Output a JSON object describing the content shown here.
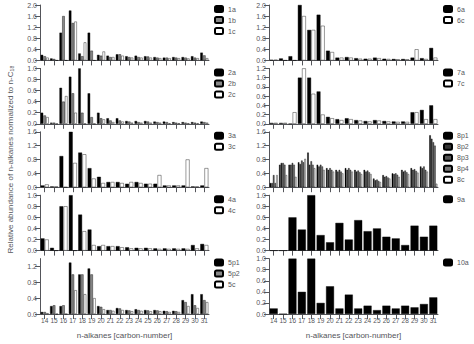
{
  "chart_data": [
    {
      "type": "bar",
      "categories": [
        "14",
        "15",
        "16",
        "17",
        "18",
        "19",
        "20",
        "21",
        "22",
        "23",
        "24",
        "25",
        "26",
        "27",
        "28",
        "29",
        "30",
        "31"
      ],
      "series": [
        {
          "name": "1a",
          "color": "#000000",
          "values": [
            0.2,
            0.07,
            1.0,
            1.8,
            0.25,
            1.0,
            0.2,
            0.17,
            0.22,
            0.15,
            0.17,
            0.15,
            0.12,
            0.1,
            0.12,
            0.12,
            0.15,
            0.28
          ]
        },
        {
          "name": "1b",
          "color": "#888888",
          "values": [
            0.15,
            0.05,
            1.6,
            1.35,
            0.15,
            0.35,
            0.17,
            0.12,
            0.22,
            0.12,
            0.12,
            0.14,
            0.1,
            0.1,
            0.1,
            0.1,
            0.1,
            0.18
          ]
        },
        {
          "name": "1c",
          "color": "#ffffff",
          "values": [
            0.1,
            0.0,
            0.0,
            1.4,
            0.65,
            0.0,
            0.32,
            0.12,
            0.17,
            0.1,
            0.1,
            0.1,
            0.08,
            0.08,
            0.08,
            0.07,
            0.08,
            0.08
          ]
        }
      ],
      "ylim": [
        0,
        2.0
      ],
      "yticks": [
        {
          "value": 0,
          "label": "0.0"
        },
        0.4,
        0.8,
        1.2,
        1.6,
        {
          "value": 2,
          "label": "2.0"
        }
      ],
      "legend": "right",
      "grid": false,
      "tick_labels": "y"
    },
    {
      "type": "bar",
      "categories": [
        "14",
        "15",
        "16",
        "17",
        "18",
        "19",
        "20",
        "21",
        "22",
        "23",
        "24",
        "25",
        "26",
        "27",
        "28",
        "29",
        "30",
        "31"
      ],
      "series": [
        {
          "name": "2a",
          "color": "#000000",
          "values": [
            0.2,
            0.02,
            0.65,
            0.85,
            1.0,
            0.55,
            0.2,
            0.1,
            0.1,
            0.05,
            0.05,
            0.05,
            0.04,
            0.04,
            0.03,
            0.03,
            0.03,
            0.04
          ]
        },
        {
          "name": "2b",
          "color": "#888888",
          "values": [
            0.15,
            0.02,
            0.4,
            0.55,
            0.2,
            0.12,
            0.1,
            0.06,
            0.06,
            0.04,
            0.03,
            0.04,
            0.03,
            0.03,
            0.02,
            0.02,
            0.02,
            0.03
          ]
        },
        {
          "name": "2c",
          "color": "#ffffff",
          "values": [
            0.12,
            0.0,
            0.5,
            0.2,
            0.0,
            0.0,
            0.08,
            0.03,
            0.04,
            0.02,
            0.02,
            0.02,
            0.02,
            0.01,
            0.01,
            0.01,
            0.01,
            0.02
          ]
        }
      ],
      "ylim": [
        0,
        1.0
      ],
      "yticks": [
        {
          "value": 0,
          "label": "0.0"
        },
        0.2,
        0.4,
        0.6,
        0.8,
        {
          "value": 1,
          "label": "1.0"
        }
      ],
      "legend": "right",
      "grid": false,
      "tick_labels": "y"
    },
    {
      "type": "bar",
      "ylabel": "Relative abundance of n-alkanes normalized to n-C₁₈",
      "categories": [
        "14",
        "15",
        "16",
        "17",
        "18",
        "19",
        "20",
        "21",
        "22",
        "23",
        "24",
        "25",
        "26",
        "27",
        "28",
        "29",
        "30",
        "31"
      ],
      "series": [
        {
          "name": "3a",
          "color": "#000000",
          "values": [
            0.05,
            0.02,
            0.9,
            1.6,
            1.0,
            0.55,
            0.3,
            0.15,
            0.15,
            0.1,
            0.15,
            0.1,
            0.1,
            0.05,
            0.05,
            0.05,
            0.02,
            0.05
          ]
        },
        {
          "name": "3c",
          "color": "#ffffff",
          "values": [
            0.08,
            0.02,
            0.0,
            0.7,
            0.95,
            0.25,
            0.12,
            0.15,
            0.12,
            0.15,
            0.12,
            0.1,
            0.35,
            0.05,
            0.05,
            0.8,
            0.02,
            0.55
          ]
        }
      ],
      "ylim": [
        0,
        1.6
      ],
      "yticks": [
        {
          "value": 0,
          "label": "0.0"
        },
        0.4,
        0.8,
        1.2,
        1.6
      ],
      "legend": "right",
      "grid": false,
      "tick_labels": "y"
    },
    {
      "type": "bar",
      "categories": [
        "14",
        "15",
        "16",
        "17",
        "18",
        "19",
        "20",
        "21",
        "22",
        "23",
        "24",
        "25",
        "26",
        "27",
        "28",
        "29",
        "30",
        "31"
      ],
      "series": [
        {
          "name": "4a",
          "color": "#000000",
          "values": [
            0.22,
            0.05,
            0.8,
            1.0,
            0.65,
            0.38,
            0.08,
            0.08,
            0.08,
            0.06,
            0.05,
            0.05,
            0.04,
            0.04,
            0.04,
            0.04,
            0.1,
            0.12
          ]
        },
        {
          "name": "4c",
          "color": "#ffffff",
          "values": [
            0.2,
            0.0,
            0.8,
            0.0,
            0.35,
            0.1,
            0.1,
            0.08,
            0.06,
            0.04,
            0.04,
            0.04,
            0.03,
            0.03,
            0.03,
            0.03,
            0.04,
            0.1
          ]
        }
      ],
      "ylim": [
        0,
        1.0
      ],
      "yticks": [
        {
          "value": 0,
          "label": "0.0"
        },
        0.2,
        0.4,
        0.6,
        0.8,
        {
          "value": 1,
          "label": "1.0"
        }
      ],
      "legend": "right",
      "grid": false,
      "tick_labels": "y"
    },
    {
      "type": "bar",
      "xlabel": "n-alkanes [carbon-number]",
      "categories": [
        "14",
        "15",
        "16",
        "17",
        "18",
        "19",
        "20",
        "21",
        "22",
        "23",
        "24",
        "25",
        "26",
        "27",
        "28",
        "29",
        "30",
        "31"
      ],
      "series": [
        {
          "name": "5p1",
          "color": "#000000",
          "values": [
            0.05,
            0.2,
            0.2,
            1.3,
            1.0,
            1.15,
            0.2,
            0.1,
            0.15,
            0.1,
            0.12,
            0.1,
            0.1,
            0.08,
            0.08,
            0.35,
            0.5,
            0.5
          ]
        },
        {
          "name": "5p2",
          "color": "#888888",
          "values": [
            0.05,
            0.22,
            0.22,
            1.0,
            1.0,
            1.0,
            0.18,
            0.1,
            0.14,
            0.09,
            0.1,
            0.09,
            0.09,
            0.07,
            0.07,
            0.3,
            0.22,
            0.35
          ]
        },
        {
          "name": "5c",
          "color": "#ffffff",
          "values": [
            0.02,
            0.0,
            0.0,
            0.6,
            0.5,
            0.4,
            0.12,
            0.08,
            0.1,
            0.07,
            0.08,
            0.07,
            0.07,
            0.05,
            0.05,
            0.2,
            0.15,
            0.3
          ]
        }
      ],
      "ylim": [
        0,
        1.4
      ],
      "yticks": [
        {
          "value": 0,
          "label": "0.0"
        },
        0.4,
        0.8,
        1.2
      ],
      "legend": "right",
      "grid": false
    },
    {
      "type": "bar",
      "categories": [
        "14",
        "15",
        "16",
        "17",
        "18",
        "19",
        "20",
        "21",
        "22",
        "23",
        "24",
        "25",
        "26",
        "27",
        "28",
        "29",
        "30",
        "31"
      ],
      "series": [
        {
          "name": "6a",
          "color": "#000000",
          "values": [
            0.02,
            0.07,
            0.15,
            2.0,
            1.1,
            1.65,
            0.35,
            0.1,
            0.12,
            0.08,
            0.06,
            0.1,
            0.06,
            0.05,
            0.05,
            0.1,
            0.08,
            0.45
          ]
        },
        {
          "name": "6c",
          "color": "#ffffff",
          "values": [
            0.02,
            0.0,
            0.0,
            1.6,
            1.1,
            1.25,
            0.3,
            0.1,
            0.1,
            0.06,
            0.06,
            0.08,
            0.05,
            0.04,
            0.04,
            0.4,
            0.05,
            0.1
          ]
        }
      ],
      "ylim": [
        0,
        2.0
      ],
      "yticks": [
        {
          "value": 0,
          "label": "0.0"
        },
        0.4,
        0.8,
        1.2,
        1.6,
        {
          "value": 2,
          "label": "2.0"
        }
      ],
      "legend": "right",
      "grid": false,
      "tick_labels": "y"
    },
    {
      "type": "bar",
      "categories": [
        "14",
        "15",
        "16",
        "17",
        "18",
        "19",
        "20",
        "21",
        "22",
        "23",
        "24",
        "25",
        "26",
        "27",
        "28",
        "29",
        "30",
        "31"
      ],
      "series": [
        {
          "name": "7a",
          "color": "#000000",
          "values": [
            0.02,
            0.02,
            0.0,
            1.0,
            1.0,
            0.7,
            0.15,
            0.1,
            0.12,
            0.08,
            0.06,
            0.08,
            0.06,
            0.05,
            0.05,
            0.25,
            0.3,
            0.4
          ]
        },
        {
          "name": "7c",
          "color": "#ffffff",
          "values": [
            0.02,
            0.02,
            0.25,
            1.2,
            0.65,
            0.2,
            0.12,
            0.08,
            0.1,
            0.07,
            0.05,
            0.07,
            0.05,
            0.04,
            0.04,
            0.25,
            0.1,
            0.1
          ]
        }
      ],
      "ylim": [
        0,
        1.2
      ],
      "yticks": [
        {
          "value": 0,
          "label": "0.0"
        },
        0.2,
        0.4,
        0.6,
        0.8,
        {
          "value": 1,
          "label": "1.0"
        },
        1.2
      ],
      "legend": "right",
      "grid": false,
      "tick_labels": "y"
    },
    {
      "type": "bar",
      "categories": [
        "14",
        "15",
        "16",
        "17",
        "18",
        "19",
        "20",
        "21",
        "22",
        "23",
        "24",
        "25",
        "26",
        "27",
        "28",
        "29",
        "30",
        "31"
      ],
      "series": [
        {
          "name": "8p1",
          "color": "#000000",
          "values": [
            0.12,
            0.65,
            0.65,
            0.72,
            1.0,
            0.65,
            0.55,
            0.5,
            0.55,
            0.5,
            0.5,
            0.25,
            0.35,
            0.4,
            0.5,
            0.55,
            0.6,
            1.5
          ]
        },
        {
          "name": "8p2",
          "color": "#333333",
          "values": [
            0.12,
            0.7,
            0.65,
            0.67,
            0.65,
            0.6,
            0.5,
            0.45,
            0.5,
            0.45,
            0.45,
            0.2,
            0.3,
            0.38,
            0.45,
            0.5,
            0.55,
            1.4
          ]
        },
        {
          "name": "8p3",
          "color": "#555555",
          "values": [
            0.35,
            0.7,
            0.7,
            0.77,
            0.75,
            0.65,
            0.55,
            0.5,
            0.55,
            0.48,
            0.48,
            0.22,
            0.32,
            0.4,
            0.48,
            0.52,
            0.6,
            1.3
          ]
        },
        {
          "name": "8p4",
          "color": "#777777",
          "values": [
            0.12,
            0.65,
            0.65,
            0.72,
            0.65,
            0.6,
            0.5,
            0.45,
            0.5,
            0.43,
            0.43,
            0.18,
            0.28,
            0.36,
            0.43,
            0.47,
            0.5,
            1.2
          ]
        },
        {
          "name": "8c",
          "color": "#ffffff",
          "values": [
            0.35,
            0.35,
            0.3,
            0.82,
            0.55,
            0.5,
            0.45,
            0.4,
            0.45,
            0.38,
            0.38,
            0.15,
            0.25,
            0.3,
            0.38,
            0.42,
            0.45,
            0.1
          ]
        }
      ],
      "ylim": [
        0,
        1.6
      ],
      "yticks": [
        {
          "value": 0,
          "label": "0.0"
        },
        0.4,
        0.8,
        1.2,
        1.6
      ],
      "legend": "right",
      "grid": false,
      "tick_labels": "y"
    },
    {
      "type": "bar",
      "categories": [
        "14",
        "15",
        "16",
        "17",
        "18",
        "19",
        "20",
        "21",
        "22",
        "23",
        "24",
        "25",
        "26",
        "27",
        "28",
        "29",
        "30",
        "31"
      ],
      "series": [
        {
          "name": "9a",
          "color": "#000000",
          "values": [
            0.0,
            0.0,
            0.6,
            0.38,
            1.0,
            0.28,
            0.15,
            0.5,
            0.2,
            0.55,
            0.35,
            0.4,
            0.25,
            0.22,
            0.1,
            0.45,
            0.25,
            0.45
          ]
        }
      ],
      "ylim": [
        0,
        1.0
      ],
      "yticks": [
        {
          "value": 0,
          "label": "0.0"
        },
        0.2,
        0.4,
        0.6,
        0.8,
        {
          "value": 1,
          "label": "1.0"
        }
      ],
      "legend": "right",
      "grid": false,
      "tick_labels": "y"
    },
    {
      "type": "bar",
      "xlabel": "n-alkanes [carbon-number]",
      "categories": [
        "14",
        "15",
        "16",
        "17",
        "18",
        "19",
        "20",
        "21",
        "22",
        "23",
        "24",
        "25",
        "26",
        "27",
        "28",
        "29",
        "30",
        "31"
      ],
      "series": [
        {
          "name": "10a",
          "color": "#000000",
          "values": [
            0.1,
            0.0,
            1.0,
            0.4,
            1.0,
            0.2,
            0.5,
            0.1,
            0.35,
            0.1,
            0.15,
            0.07,
            0.15,
            0.1,
            0.15,
            0.12,
            0.18,
            0.3
          ]
        }
      ],
      "ylim": [
        0,
        1.0
      ],
      "yticks": [
        {
          "value": 0,
          "label": "0.0"
        },
        0.2,
        0.4,
        0.6,
        0.8,
        {
          "value": 1,
          "label": "1.0"
        }
      ],
      "legend": "right",
      "grid": false
    }
  ]
}
